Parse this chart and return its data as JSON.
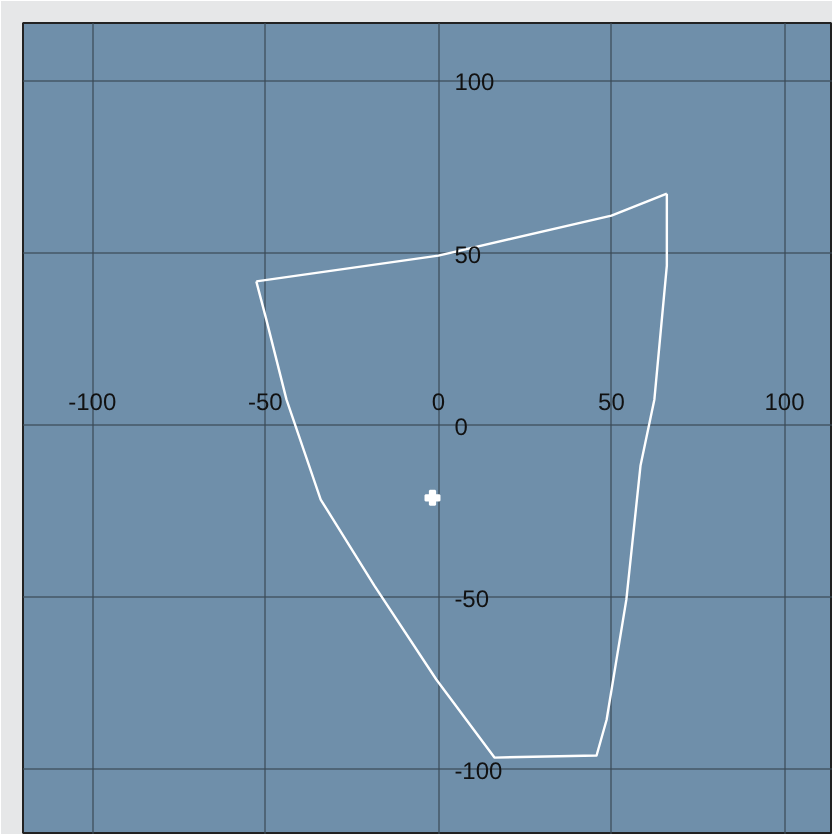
{
  "chart_data": {
    "type": "line",
    "xlim": [
      -120,
      114
    ],
    "ylim": [
      -119,
      117
    ],
    "xticks": [
      -100,
      -50,
      0,
      50,
      100
    ],
    "yticks": [
      -100,
      -50,
      0,
      50,
      100
    ],
    "grid": true,
    "series": [
      {
        "color": "#ffffff",
        "x": [
          -52.6,
          0,
          50,
          66
        ],
        "values": [
          41.9,
          49.4,
          61,
          67.4
        ]
      },
      {
        "color": "#ffffff",
        "x": [
          66,
          66,
          62.4,
          58.4,
          54.3,
          48.6,
          45.7,
          16.2,
          -0.6,
          -18.5,
          -34,
          -43.9,
          -49.7,
          -52.6
        ],
        "values": [
          67.4,
          46.5,
          7.6,
          -11.6,
          -50.6,
          -85.5,
          -95.9,
          -96.5,
          -73.8,
          -46.5,
          -21.5,
          7.6,
          30.8,
          41.9
        ]
      },
      {
        "type": "scatter",
        "marker": "cross",
        "color": "#ffffff",
        "x": [
          -1.7
        ],
        "values": [
          -21
        ]
      }
    ]
  }
}
